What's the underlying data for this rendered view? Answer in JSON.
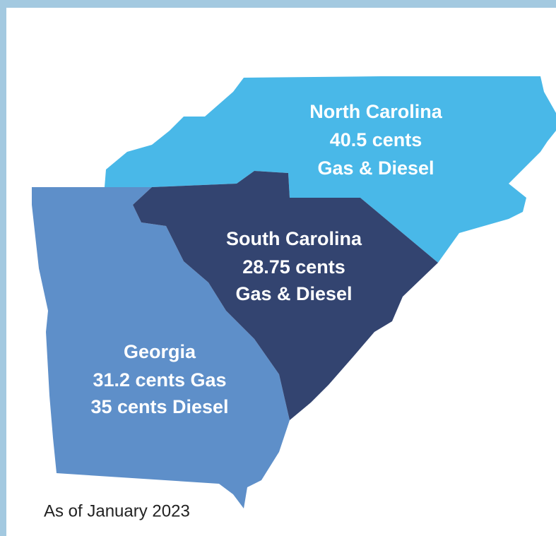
{
  "regions": [
    {
      "name": "North Carolina",
      "lines": [
        "40.5 cents",
        "Gas & Diesel"
      ]
    },
    {
      "name": "South Carolina",
      "lines": [
        "28.75 cents",
        "Gas & Diesel"
      ]
    },
    {
      "name": "Georgia",
      "lines": [
        "31.2 cents Gas",
        "35 cents Diesel"
      ]
    }
  ],
  "note": "As of January 2023"
}
